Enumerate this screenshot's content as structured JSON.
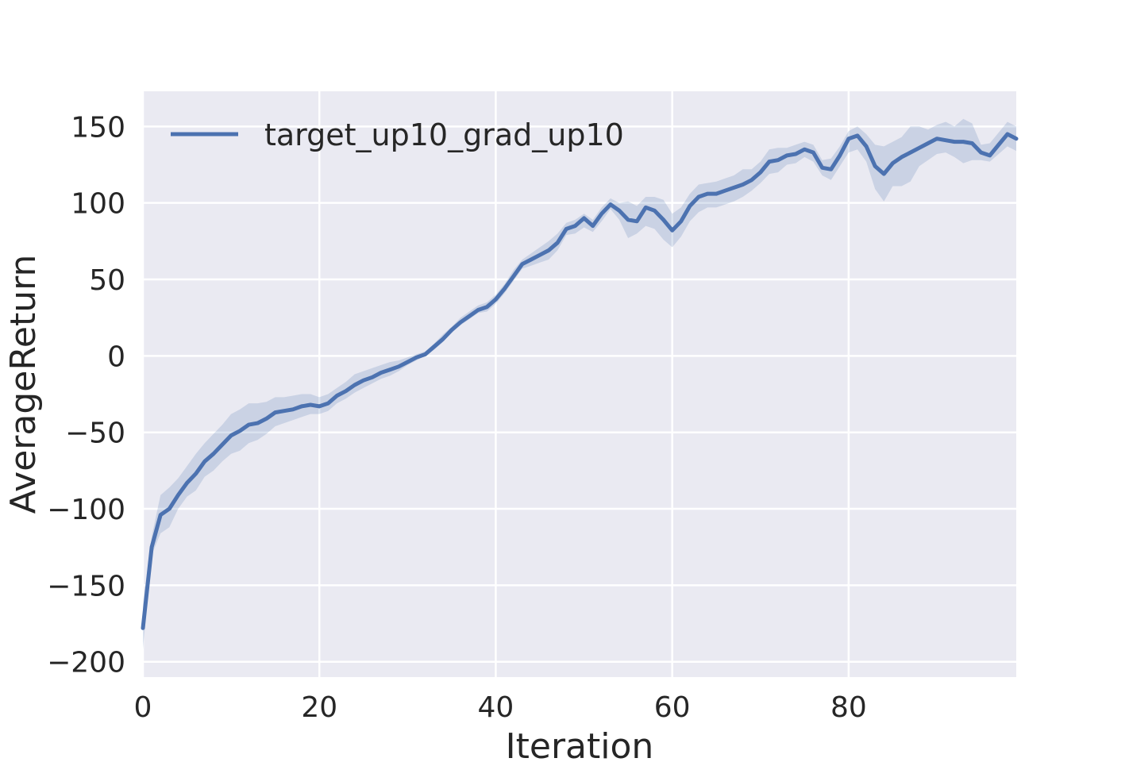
{
  "chart_data": {
    "type": "line",
    "title": "",
    "xlabel": "Iteration",
    "ylabel": "AverageReturn",
    "xlim": [
      0,
      99
    ],
    "ylim": [
      -210,
      173
    ],
    "xticks": [
      0,
      20,
      40,
      60,
      80
    ],
    "xtick_labels": [
      "0",
      "20",
      "40",
      "60",
      "80"
    ],
    "yticks": [
      -200,
      -150,
      -100,
      -50,
      0,
      50,
      100,
      150
    ],
    "ytick_labels": [
      "−200",
      "−150",
      "−100",
      "−50",
      "0",
      "50",
      "100",
      "150"
    ],
    "grid": true,
    "legend_position": "top-left",
    "colors": {
      "background": "#EAEAF2",
      "grid": "#FFFFFF",
      "line": "#4C72B0",
      "band": "#4C72B0"
    },
    "series": [
      {
        "name": "target_up10_grad_up10",
        "x": [
          0,
          1,
          2,
          3,
          4,
          5,
          6,
          7,
          8,
          9,
          10,
          11,
          12,
          13,
          14,
          15,
          16,
          17,
          18,
          19,
          20,
          21,
          22,
          23,
          24,
          25,
          26,
          27,
          28,
          29,
          30,
          31,
          32,
          33,
          34,
          35,
          36,
          37,
          38,
          39,
          40,
          41,
          42,
          43,
          44,
          45,
          46,
          47,
          48,
          49,
          50,
          51,
          52,
          53,
          54,
          55,
          56,
          57,
          58,
          59,
          60,
          61,
          62,
          63,
          64,
          65,
          66,
          67,
          68,
          69,
          70,
          71,
          72,
          73,
          74,
          75,
          76,
          77,
          78,
          79,
          80,
          81,
          82,
          83,
          84,
          85,
          86,
          87,
          88,
          89,
          90,
          91,
          92,
          93,
          94,
          95,
          96,
          97,
          98,
          99
        ],
        "y": [
          -178,
          -125,
          -104,
          -100,
          -91,
          -83,
          -77,
          -69,
          -64,
          -58,
          -52,
          -49,
          -45,
          -44,
          -41,
          -37,
          -36,
          -35,
          -33,
          -32,
          -33,
          -31,
          -26,
          -23,
          -19,
          -16,
          -14,
          -11,
          -9,
          -7,
          -4,
          -1,
          1,
          6,
          11,
          17,
          22,
          26,
          30,
          32,
          37,
          44,
          52,
          60,
          63,
          66,
          69,
          74,
          83,
          85,
          90,
          85,
          93,
          99,
          95,
          89,
          88,
          97,
          95,
          89,
          82,
          88,
          98,
          104,
          106,
          106,
          108,
          110,
          112,
          115,
          120,
          127,
          128,
          131,
          132,
          135,
          133,
          123,
          122,
          131,
          142,
          144,
          137,
          124,
          119,
          126,
          130,
          133,
          136,
          139,
          142,
          141,
          140,
          140,
          139,
          133,
          131,
          138,
          145,
          142
        ],
        "lower": [
          -192,
          -130,
          -116,
          -112,
          -100,
          -92,
          -88,
          -79,
          -75,
          -69,
          -64,
          -62,
          -57,
          -55,
          -51,
          -46,
          -44,
          -42,
          -40,
          -38,
          -38,
          -36,
          -31,
          -28,
          -24,
          -21,
          -18,
          -15,
          -13,
          -10,
          -6,
          -3,
          0,
          4,
          9,
          15,
          20,
          24,
          28,
          29,
          34,
          41,
          49,
          57,
          59,
          61,
          63,
          69,
          79,
          80,
          84,
          81,
          88,
          96,
          89,
          77,
          80,
          85,
          83,
          76,
          71,
          78,
          88,
          94,
          97,
          97,
          99,
          101,
          104,
          108,
          113,
          119,
          120,
          125,
          126,
          130,
          127,
          118,
          115,
          124,
          133,
          135,
          127,
          109,
          101,
          111,
          111,
          114,
          124,
          128,
          132,
          133,
          130,
          126,
          128,
          128,
          127,
          132,
          137,
          134
        ],
        "upper": [
          -162,
          -118,
          -91,
          -86,
          -80,
          -72,
          -64,
          -57,
          -51,
          -45,
          -38,
          -35,
          -31,
          -31,
          -30,
          -27,
          -27,
          -26,
          -25,
          -25,
          -27,
          -25,
          -21,
          -17,
          -12,
          -10,
          -8,
          -6,
          -4,
          -3,
          -1,
          1,
          3,
          8,
          14,
          19,
          25,
          29,
          33,
          35,
          40,
          47,
          56,
          63,
          67,
          71,
          75,
          80,
          87,
          89,
          93,
          89,
          97,
          103,
          100,
          101,
          98,
          104,
          104,
          102,
          93,
          97,
          106,
          112,
          113,
          114,
          116,
          118,
          122,
          122,
          127,
          135,
          136,
          136,
          138,
          140,
          138,
          128,
          129,
          137,
          147,
          150,
          145,
          138,
          137,
          140,
          143,
          150,
          150,
          148,
          151,
          153,
          150,
          155,
          152,
          138,
          139,
          146,
          153,
          150
        ]
      }
    ]
  }
}
